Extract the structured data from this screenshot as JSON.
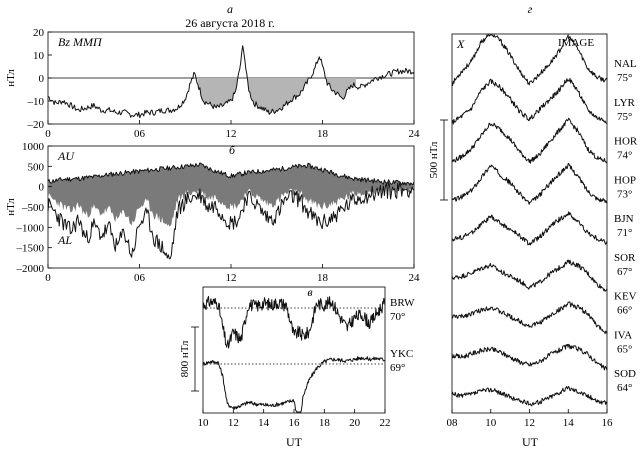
{
  "chart_data": [
    {
      "id": "a",
      "type": "line",
      "panel_letter": "а",
      "title": "26 августа 2018 г.",
      "series_label": "Bz ММП",
      "ylabel": "нТл",
      "ylim": [
        -20,
        20
      ],
      "xlim": [
        0,
        24
      ],
      "x_ticks": [
        "0",
        "06",
        "12",
        "18",
        "24"
      ],
      "y_ticks": [
        "20",
        "10",
        "0",
        "–10",
        "–20"
      ],
      "fill_negative": true,
      "x": [
        0,
        0.5,
        1,
        1.5,
        2,
        2.5,
        3,
        3.5,
        4,
        4.5,
        5,
        5.5,
        6,
        6.5,
        7,
        7.5,
        8,
        8.5,
        9,
        9.3,
        9.6,
        9.9,
        10.2,
        10.5,
        11,
        11.5,
        12,
        12.3,
        12.6,
        12.8,
        13.0,
        13.2,
        13.5,
        14,
        14.5,
        15,
        15.5,
        16,
        16.5,
        17,
        17.5,
        17.8,
        18.0,
        18.3,
        18.6,
        19,
        19.3,
        19.6,
        20,
        20.5,
        21,
        21.5,
        22,
        22.5,
        23,
        23.5,
        24
      ],
      "y": [
        -8,
        -11,
        -10,
        -12,
        -14,
        -13,
        -12,
        -14,
        -14,
        -15,
        -15,
        -16,
        -16,
        -15,
        -15,
        -14,
        -14,
        -13,
        -9,
        -3,
        2,
        -4,
        -10,
        -11,
        -13,
        -12,
        -10,
        -6,
        5,
        15,
        2,
        -6,
        -11,
        -13,
        -15,
        -14,
        -12,
        -9,
        -7,
        -2,
        4,
        10,
        5,
        -2,
        -5,
        -7,
        -9,
        -6,
        -3,
        -4,
        -2,
        0,
        1,
        2,
        3,
        3,
        3
      ]
    },
    {
      "id": "b",
      "type": "area",
      "panel_letter": "б",
      "ylabel": "нТл",
      "ylim": [
        -2000,
        1000
      ],
      "xlim": [
        0,
        24
      ],
      "x_ticks": [
        "0",
        "06",
        "12",
        "18",
        "24"
      ],
      "y_ticks": [
        "1000",
        "500",
        "0",
        "–500",
        "–1000",
        "–1500",
        "–2000"
      ],
      "series": [
        {
          "name": "AU",
          "x": [
            0,
            1,
            2,
            3,
            4,
            5,
            6,
            7,
            8,
            9,
            10,
            11,
            12,
            13,
            14,
            15,
            16,
            17,
            18,
            19,
            20,
            21,
            22,
            23,
            24
          ],
          "y": [
            120,
            180,
            200,
            240,
            300,
            340,
            380,
            420,
            460,
            500,
            540,
            380,
            260,
            340,
            380,
            420,
            480,
            520,
            420,
            300,
            200,
            160,
            120,
            100,
            80
          ]
        },
        {
          "name": "AL",
          "x": [
            0,
            0.5,
            1,
            1.5,
            2,
            2.5,
            3,
            3.5,
            4,
            4.5,
            5,
            5.5,
            6,
            6.5,
            7,
            7.5,
            8,
            8.5,
            9,
            9.5,
            10,
            10.5,
            11,
            11.5,
            12,
            12.5,
            13,
            13.5,
            14,
            14.5,
            15,
            15.5,
            16,
            16.5,
            17,
            17.5,
            18,
            18.5,
            19,
            19.5,
            20,
            20.5,
            21,
            21.5,
            22,
            22.5,
            23,
            23.5,
            24
          ],
          "y": [
            -450,
            -650,
            -900,
            -1100,
            -800,
            -1300,
            -950,
            -1200,
            -1000,
            -1500,
            -1100,
            -1700,
            -900,
            -700,
            -1300,
            -1500,
            -1850,
            -600,
            -350,
            -250,
            -200,
            -500,
            -450,
            -700,
            -900,
            -800,
            -250,
            -350,
            -600,
            -800,
            -700,
            -350,
            -250,
            -300,
            -600,
            -800,
            -900,
            -800,
            -650,
            -500,
            -350,
            -250,
            -200,
            -150,
            -100,
            -100,
            -80,
            -60,
            -50
          ]
        }
      ]
    },
    {
      "id": "c",
      "type": "line",
      "panel_letter": "в",
      "xlabel": "UT",
      "xlim": [
        10,
        22
      ],
      "x_ticks": [
        "10",
        "12",
        "14",
        "16",
        "18",
        "20",
        "22"
      ],
      "scale_bar_label": "800 нТл",
      "scale_bar_nT": 800,
      "stations": [
        {
          "name": "BRW",
          "lat": "70°",
          "x": [
            10,
            10.5,
            11,
            11.3,
            11.6,
            12,
            12.5,
            13,
            13.5,
            14,
            14.5,
            15,
            15.5,
            16,
            16.3,
            16.6,
            17,
            17.5,
            18,
            18.5,
            19,
            19.5,
            20,
            20.5,
            21,
            21.5,
            22
          ],
          "y": [
            40,
            80,
            60,
            -250,
            -500,
            -300,
            -400,
            50,
            20,
            60,
            40,
            70,
            30,
            -350,
            -300,
            -350,
            -300,
            60,
            40,
            80,
            -100,
            -250,
            -120,
            -80,
            -200,
            -50,
            60
          ]
        },
        {
          "name": "YKC",
          "lat": "69°",
          "x": [
            10,
            10.5,
            11,
            11.3,
            11.6,
            12,
            12.5,
            13,
            13.5,
            14,
            14.5,
            15,
            15.5,
            16,
            16.2,
            16.4,
            16.6,
            17,
            17.5,
            18,
            18.5,
            19,
            19.5,
            20,
            20.5,
            21,
            21.5,
            22
          ],
          "y": [
            0,
            30,
            20,
            -150,
            -500,
            -550,
            -520,
            -480,
            -500,
            -510,
            -520,
            -500,
            -480,
            -450,
            -650,
            -700,
            -400,
            -200,
            -50,
            30,
            60,
            50,
            40,
            60,
            80,
            60,
            70,
            50
          ]
        }
      ]
    },
    {
      "id": "d",
      "type": "line",
      "panel_letter": "г",
      "component_label": "X",
      "overlay_label": "IMAGE",
      "xlabel": "UT",
      "xlim": [
        8,
        16
      ],
      "x_ticks": [
        "08",
        "10",
        "12",
        "14",
        "16"
      ],
      "scale_bar_label": "500 нТл",
      "scale_bar_nT": 500,
      "stations": [
        {
          "name": "NAL",
          "lat": "75°",
          "x": [
            8,
            8.5,
            9,
            9.5,
            10,
            10.5,
            11,
            11.5,
            12,
            12.5,
            13,
            13.5,
            14,
            14.5,
            15,
            15.5,
            16
          ],
          "y": [
            0,
            80,
            140,
            260,
            320,
            270,
            180,
            80,
            0,
            60,
            120,
            200,
            300,
            220,
            100,
            40,
            20
          ]
        },
        {
          "name": "LYR",
          "lat": "75°",
          "x": [
            8,
            8.5,
            9,
            9.5,
            10,
            10.5,
            11,
            11.5,
            12,
            12.5,
            13,
            13.5,
            14,
            14.5,
            15,
            15.5,
            16
          ],
          "y": [
            0,
            40,
            90,
            200,
            260,
            220,
            150,
            70,
            20,
            80,
            140,
            200,
            280,
            200,
            80,
            30,
            10
          ]
        },
        {
          "name": "HOR",
          "lat": "74°",
          "x": [
            8,
            8.5,
            9,
            9.5,
            10,
            10.5,
            11,
            11.5,
            12,
            12.5,
            13,
            13.5,
            14,
            14.5,
            15,
            15.5,
            16
          ],
          "y": [
            0,
            30,
            80,
            160,
            240,
            200,
            140,
            60,
            0,
            40,
            120,
            190,
            260,
            190,
            80,
            20,
            0
          ]
        },
        {
          "name": "HOP",
          "lat": "73°",
          "x": [
            8,
            8.5,
            9,
            9.5,
            10,
            10.5,
            11,
            11.5,
            12,
            12.5,
            13,
            13.5,
            14,
            14.5,
            15,
            15.5,
            16
          ],
          "y": [
            0,
            20,
            60,
            140,
            220,
            160,
            110,
            40,
            -20,
            30,
            100,
            160,
            220,
            150,
            60,
            10,
            -10
          ]
        },
        {
          "name": "BJN",
          "lat": "71°",
          "x": [
            8,
            8.5,
            9,
            9.5,
            10,
            10.5,
            11,
            11.5,
            12,
            12.5,
            13,
            13.5,
            14,
            14.5,
            15,
            15.5,
            16
          ],
          "y": [
            0,
            10,
            40,
            90,
            140,
            100,
            60,
            20,
            -30,
            10,
            70,
            120,
            160,
            110,
            40,
            0,
            -20
          ]
        },
        {
          "name": "SOR",
          "lat": "67°",
          "x": [
            8,
            8.5,
            9,
            9.5,
            10,
            10.5,
            11,
            11.5,
            12,
            12.5,
            13,
            13.5,
            14,
            14.5,
            15,
            15.5,
            16
          ],
          "y": [
            0,
            10,
            30,
            60,
            80,
            40,
            10,
            -20,
            -60,
            -30,
            20,
            60,
            100,
            80,
            30,
            -40,
            -80
          ]
        },
        {
          "name": "KEV",
          "lat": "66°",
          "x": [
            8,
            8.5,
            9,
            9.5,
            10,
            10.5,
            11,
            11.5,
            12,
            12.5,
            13,
            13.5,
            14,
            14.5,
            15,
            15.5,
            16
          ],
          "y": [
            0,
            0,
            20,
            40,
            60,
            30,
            0,
            -30,
            -60,
            -40,
            0,
            40,
            80,
            60,
            20,
            -60,
            -100
          ]
        },
        {
          "name": "IVA",
          "lat": "65°",
          "x": [
            8,
            8.5,
            9,
            9.5,
            10,
            10.5,
            11,
            11.5,
            12,
            12.5,
            13,
            13.5,
            14,
            14.5,
            15,
            15.5,
            16
          ],
          "y": [
            0,
            -10,
            10,
            30,
            40,
            20,
            -10,
            -40,
            -60,
            -40,
            0,
            30,
            60,
            40,
            10,
            -50,
            -90
          ]
        },
        {
          "name": "SOD",
          "lat": "64°",
          "x": [
            8,
            8.5,
            9,
            9.5,
            10,
            10.5,
            11,
            11.5,
            12,
            12.5,
            13,
            13.5,
            14,
            14.5,
            15,
            15.5,
            16
          ],
          "y": [
            0,
            -10,
            0,
            20,
            30,
            10,
            -20,
            -40,
            -60,
            -50,
            -20,
            10,
            40,
            20,
            -10,
            -40,
            -60
          ]
        }
      ]
    }
  ]
}
